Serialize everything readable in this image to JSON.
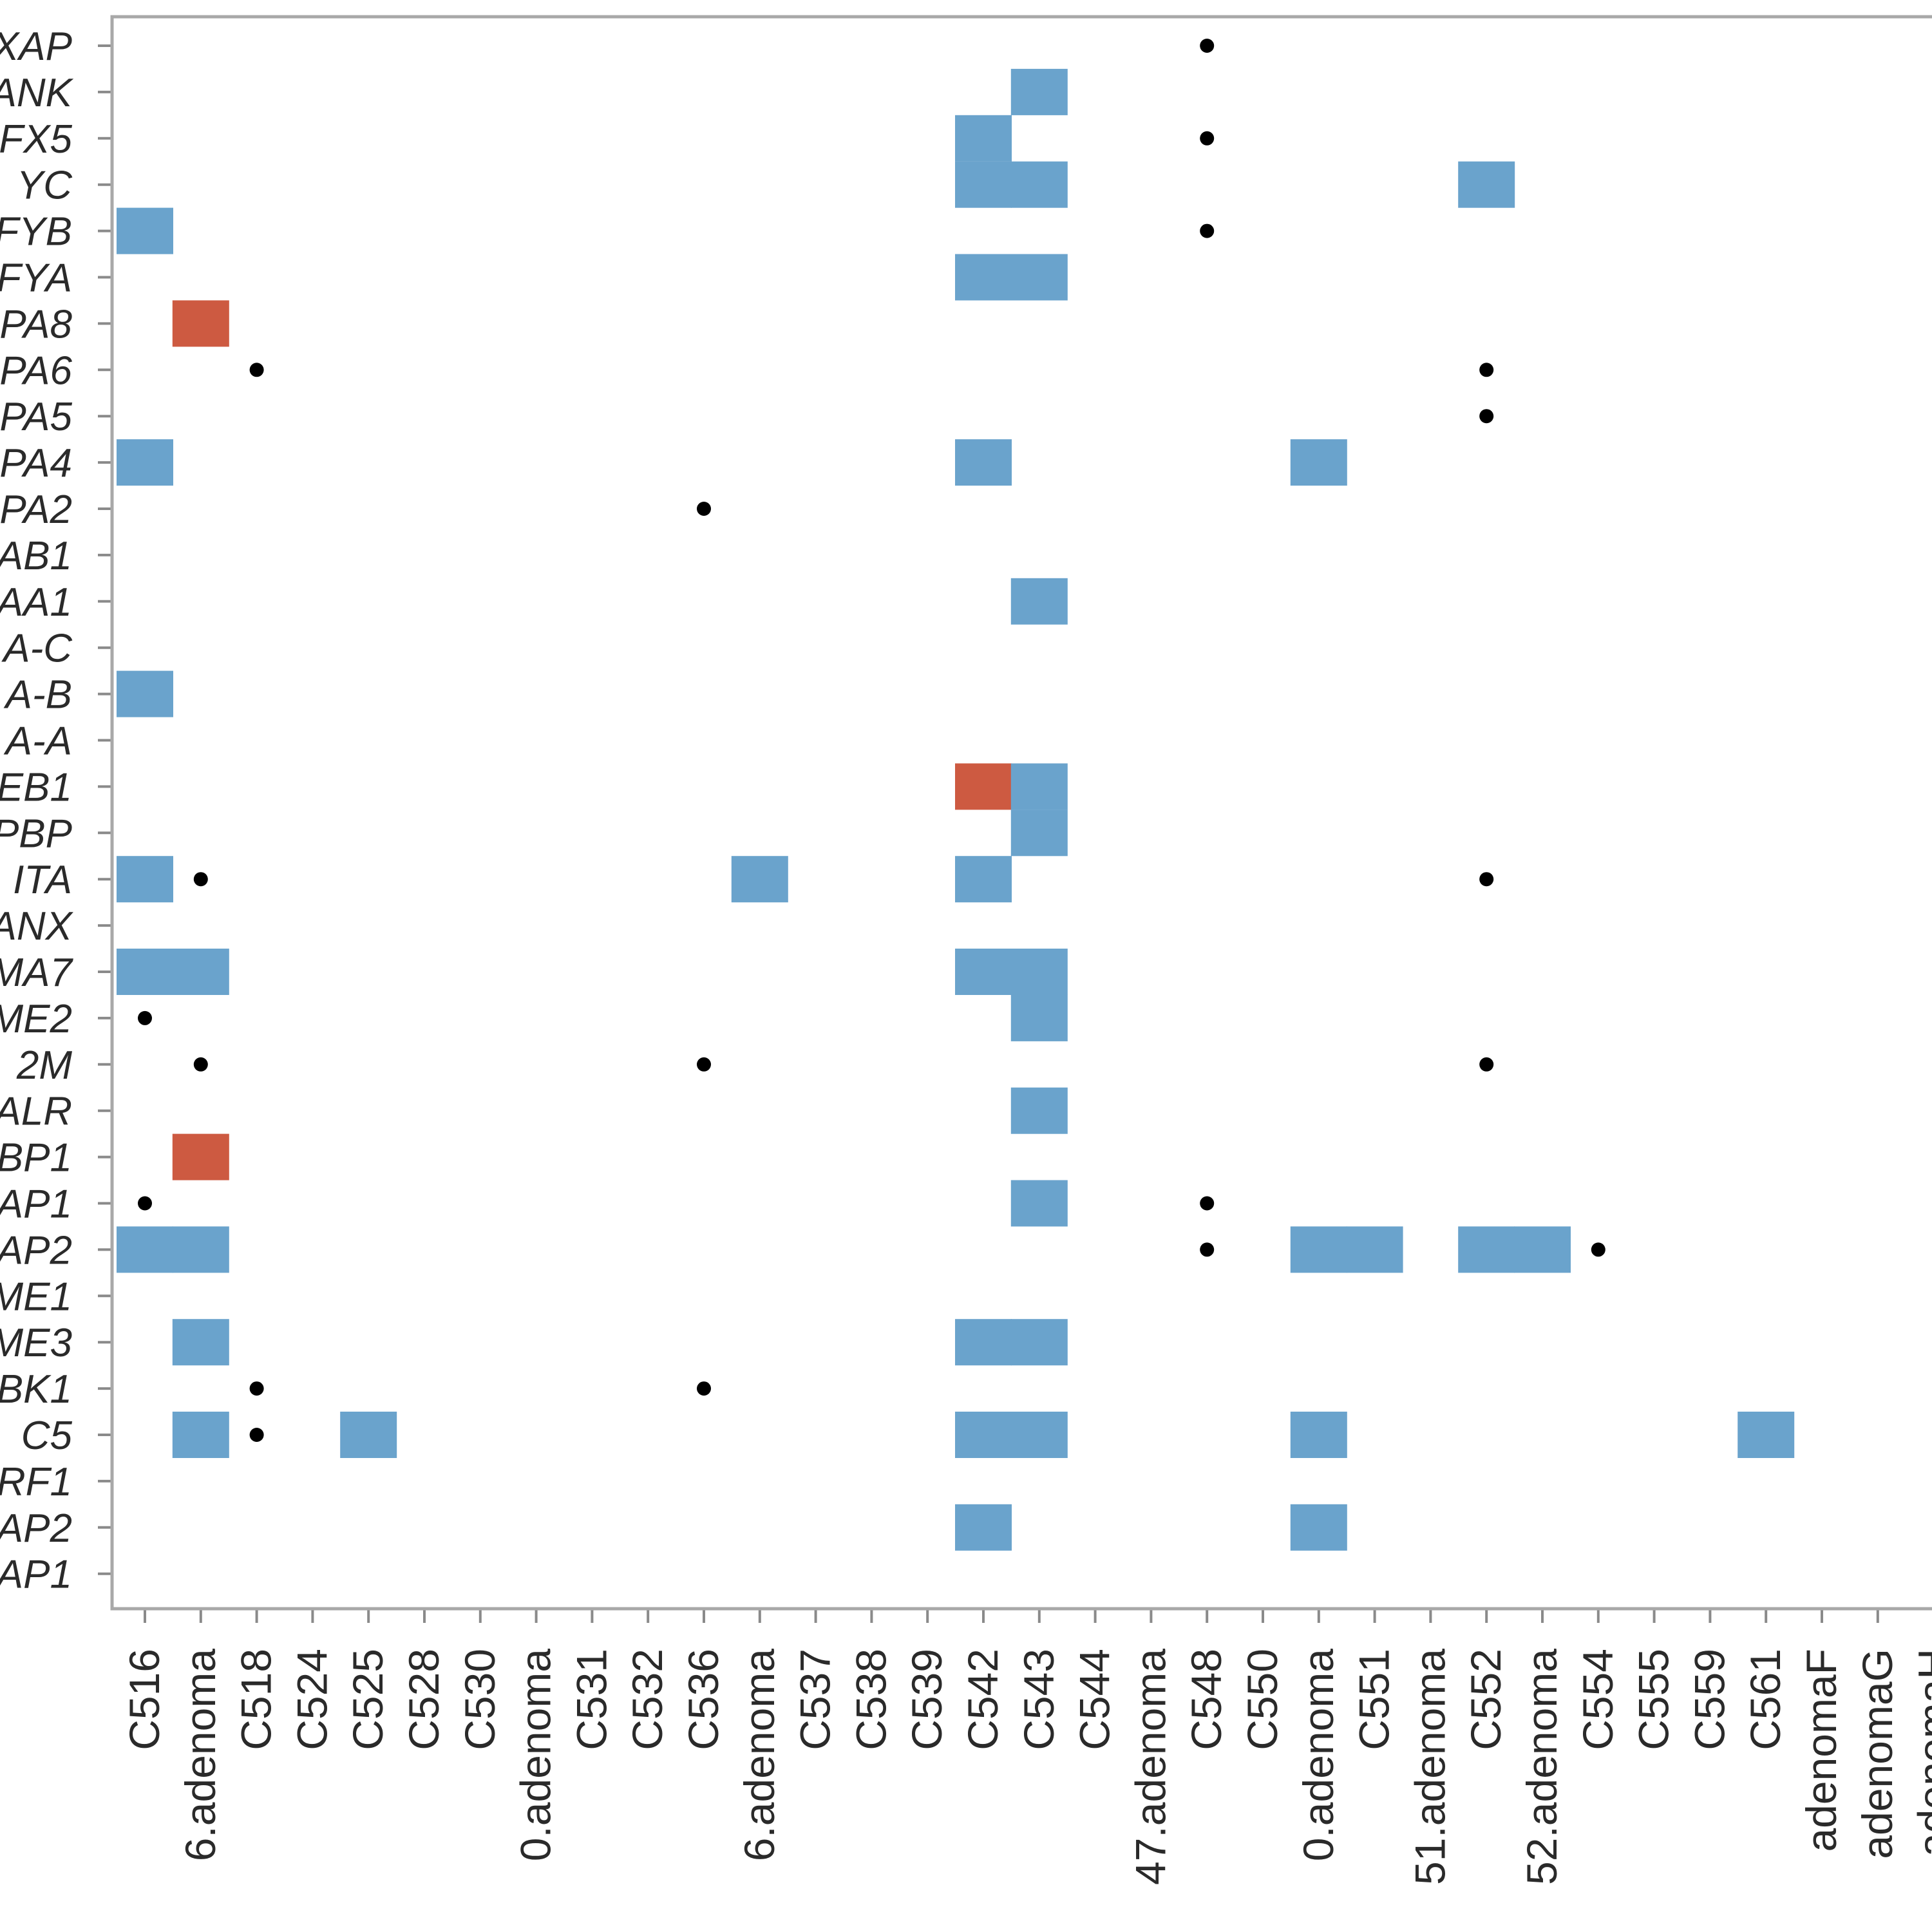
{
  "chart_data": {
    "type": "heatmap",
    "title": "",
    "xlabel": "",
    "ylabel": "",
    "grid": false,
    "rows": [
      "XAP",
      "ANK",
      "FX5",
      "YC",
      "FYB",
      "FYA",
      "PA8",
      "PA6",
      "PA5",
      "PA4",
      "PA2",
      "AB1",
      "AA1",
      "A-C",
      "A-B",
      "A-A",
      "EB1",
      "PBP",
      "ITA",
      "ANX",
      "MA7",
      "ME2",
      "2M",
      "ALR",
      "BP1",
      "AP1",
      "AP2",
      "ME1",
      "ME3",
      "BK1",
      "C5",
      "RF1",
      "AP2",
      "AP1"
    ],
    "columns": [
      "C516",
      "6.adenoma",
      "C518",
      "C524",
      "C525",
      "C528",
      "C530",
      "0.adenoma",
      "C531",
      "C532",
      "C536",
      "6.adenoma",
      "C537",
      "C538",
      "C539",
      "C542",
      "C543",
      "C544",
      "47.adenoma",
      "C548",
      "C550",
      "0.adenoma",
      "C551",
      "51.adenoma",
      "C552",
      "52.adenoma",
      "C554",
      "C555",
      "C559",
      "C561",
      "adenomaF",
      "adenomaG",
      "adenomaH"
    ],
    "colors": {
      "blue": "#6aa3cc",
      "red": "#cd5a41",
      "dot": "#000000",
      "frame": "#a8a8a8",
      "tick": "#8a8a8a"
    },
    "cells": [
      {
        "row": 1,
        "col": 16,
        "color": "blue"
      },
      {
        "row": 2,
        "col": 15,
        "color": "blue"
      },
      {
        "row": 3,
        "col": 15,
        "color": "blue"
      },
      {
        "row": 3,
        "col": 16,
        "color": "blue"
      },
      {
        "row": 3,
        "col": 24,
        "color": "blue"
      },
      {
        "row": 4,
        "col": 0,
        "color": "blue"
      },
      {
        "row": 5,
        "col": 15,
        "color": "blue"
      },
      {
        "row": 5,
        "col": 16,
        "color": "blue"
      },
      {
        "row": 6,
        "col": 1,
        "color": "red"
      },
      {
        "row": 9,
        "col": 0,
        "color": "blue"
      },
      {
        "row": 9,
        "col": 15,
        "color": "blue"
      },
      {
        "row": 9,
        "col": 21,
        "color": "blue"
      },
      {
        "row": 12,
        "col": 16,
        "color": "blue"
      },
      {
        "row": 14,
        "col": 0,
        "color": "blue"
      },
      {
        "row": 16,
        "col": 15,
        "color": "red"
      },
      {
        "row": 16,
        "col": 16,
        "color": "blue"
      },
      {
        "row": 17,
        "col": 16,
        "color": "blue"
      },
      {
        "row": 18,
        "col": 0,
        "color": "blue"
      },
      {
        "row": 18,
        "col": 11,
        "color": "blue"
      },
      {
        "row": 18,
        "col": 15,
        "color": "blue"
      },
      {
        "row": 20,
        "col": 0,
        "color": "blue"
      },
      {
        "row": 20,
        "col": 1,
        "color": "blue"
      },
      {
        "row": 20,
        "col": 15,
        "color": "blue"
      },
      {
        "row": 20,
        "col": 16,
        "color": "blue"
      },
      {
        "row": 21,
        "col": 16,
        "color": "blue"
      },
      {
        "row": 23,
        "col": 16,
        "color": "blue"
      },
      {
        "row": 24,
        "col": 1,
        "color": "red"
      },
      {
        "row": 25,
        "col": 16,
        "color": "blue"
      },
      {
        "row": 26,
        "col": 0,
        "color": "blue"
      },
      {
        "row": 26,
        "col": 1,
        "color": "blue"
      },
      {
        "row": 26,
        "col": 21,
        "color": "blue"
      },
      {
        "row": 26,
        "col": 22,
        "color": "blue"
      },
      {
        "row": 26,
        "col": 24,
        "color": "blue"
      },
      {
        "row": 26,
        "col": 25,
        "color": "blue"
      },
      {
        "row": 28,
        "col": 1,
        "color": "blue"
      },
      {
        "row": 28,
        "col": 15,
        "color": "blue"
      },
      {
        "row": 28,
        "col": 16,
        "color": "blue"
      },
      {
        "row": 30,
        "col": 1,
        "color": "blue"
      },
      {
        "row": 30,
        "col": 4,
        "color": "blue"
      },
      {
        "row": 30,
        "col": 15,
        "color": "blue"
      },
      {
        "row": 30,
        "col": 16,
        "color": "blue"
      },
      {
        "row": 30,
        "col": 21,
        "color": "blue"
      },
      {
        "row": 30,
        "col": 29,
        "color": "blue"
      },
      {
        "row": 32,
        "col": 15,
        "color": "blue"
      },
      {
        "row": 32,
        "col": 21,
        "color": "blue"
      }
    ],
    "dots": [
      {
        "row": 0,
        "col": 19
      },
      {
        "row": 2,
        "col": 19
      },
      {
        "row": 4,
        "col": 19
      },
      {
        "row": 7,
        "col": 2
      },
      {
        "row": 7,
        "col": 24
      },
      {
        "row": 8,
        "col": 24
      },
      {
        "row": 10,
        "col": 10
      },
      {
        "row": 18,
        "col": 1
      },
      {
        "row": 18,
        "col": 24
      },
      {
        "row": 21,
        "col": 0
      },
      {
        "row": 22,
        "col": 1
      },
      {
        "row": 22,
        "col": 10
      },
      {
        "row": 22,
        "col": 24
      },
      {
        "row": 25,
        "col": 0
      },
      {
        "row": 25,
        "col": 19
      },
      {
        "row": 26,
        "col": 19
      },
      {
        "row": 26,
        "col": 26
      },
      {
        "row": 29,
        "col": 2
      },
      {
        "row": 29,
        "col": 10
      },
      {
        "row": 30,
        "col": 2
      }
    ]
  }
}
